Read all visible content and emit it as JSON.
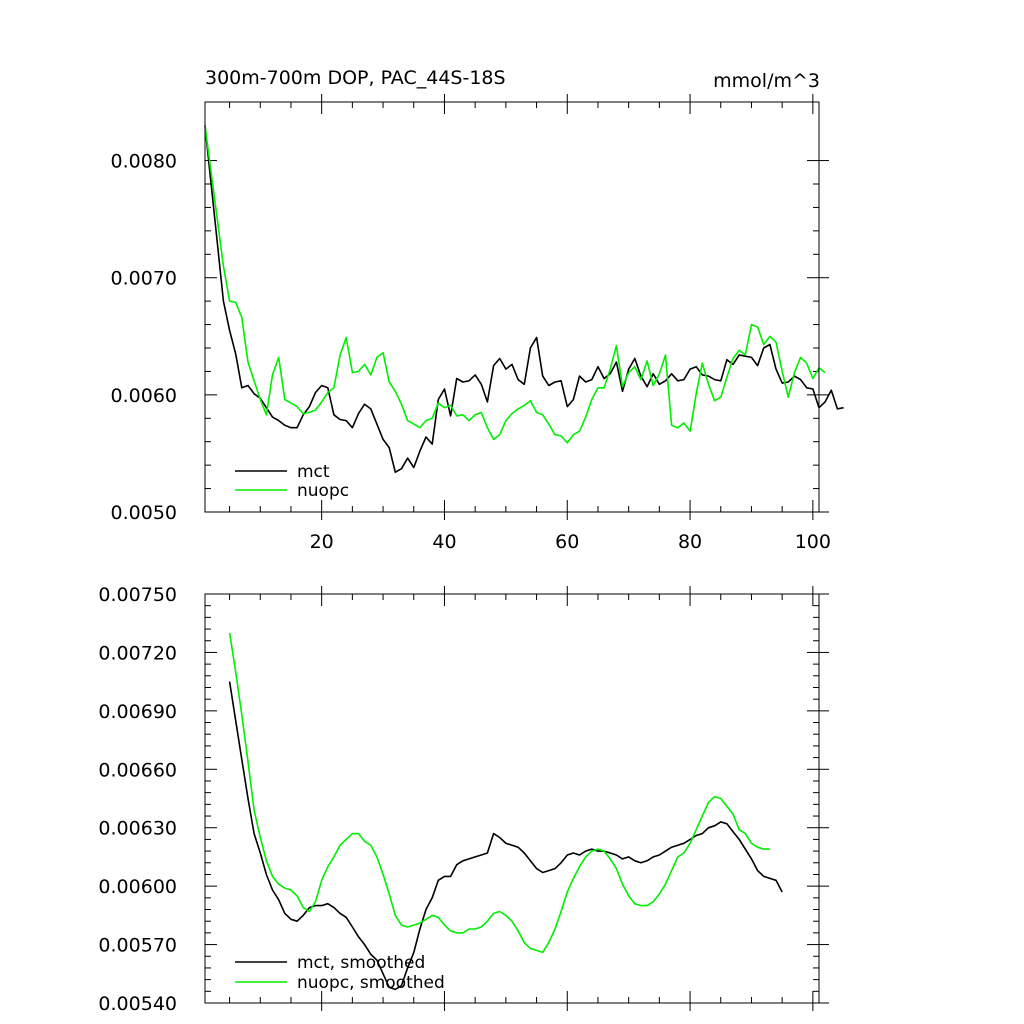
{
  "chart_data": [
    {
      "type": "line",
      "title": "300m-700m DOP, PAC_44S-18S",
      "units": "mmol/m^3",
      "xlim": [
        1,
        101
      ],
      "ylim": [
        0.005,
        0.0085
      ],
      "x_ticks": [
        20,
        40,
        60,
        80,
        100
      ],
      "x_tick_labels": [
        "20",
        "40",
        "60",
        "80",
        "100"
      ],
      "y_ticks": [
        0.005,
        0.006,
        0.007,
        0.008
      ],
      "y_tick_labels": [
        "0.0050",
        "0.0060",
        "0.0070",
        "0.0080"
      ],
      "grid": false,
      "legend_placement": "bottom-left",
      "series": [
        {
          "name": "mct",
          "color": "#000000",
          "x_start": 1,
          "values": [
            0.0083,
            0.0078,
            0.0073,
            0.0068,
            0.00655,
            0.00635,
            0.00606,
            0.00608,
            0.00601,
            0.00597,
            0.00589,
            0.00581,
            0.00578,
            0.00574,
            0.00572,
            0.00572,
            0.00583,
            0.0059,
            0.00602,
            0.00608,
            0.00606,
            0.00583,
            0.00579,
            0.00578,
            0.00572,
            0.00584,
            0.00592,
            0.00588,
            0.00575,
            0.00562,
            0.00555,
            0.00534,
            0.00537,
            0.00546,
            0.00538,
            0.00552,
            0.00564,
            0.00558,
            0.00596,
            0.00605,
            0.00582,
            0.00614,
            0.00611,
            0.00612,
            0.00617,
            0.00609,
            0.00594,
            0.00625,
            0.00631,
            0.00622,
            0.00626,
            0.00613,
            0.00609,
            0.0064,
            0.00649,
            0.00616,
            0.00608,
            0.00611,
            0.00612,
            0.0059,
            0.00596,
            0.00616,
            0.00611,
            0.00613,
            0.00624,
            0.00614,
            0.00618,
            0.00628,
            0.00603,
            0.00622,
            0.00631,
            0.00616,
            0.00607,
            0.00618,
            0.00609,
            0.00612,
            0.00618,
            0.00612,
            0.00613,
            0.00622,
            0.00624,
            0.00617,
            0.00616,
            0.00613,
            0.00612,
            0.0063,
            0.00626,
            0.00634,
            0.00633,
            0.00632,
            0.00625,
            0.0064,
            0.00643,
            0.00622,
            0.0061,
            0.00611,
            0.00616,
            0.00613,
            0.00606,
            0.00605,
            0.00589,
            0.00594,
            0.00604,
            0.00588,
            0.00589
          ]
        },
        {
          "name": "nuopc",
          "color": "#00ee00",
          "x_start": 1,
          "values": [
            0.0083,
            0.0079,
            0.0075,
            0.0071,
            0.0068,
            0.00679,
            0.00666,
            0.00628,
            0.00612,
            0.00596,
            0.00583,
            0.00617,
            0.00632,
            0.00596,
            0.00593,
            0.0059,
            0.00584,
            0.00585,
            0.00587,
            0.00594,
            0.00602,
            0.00606,
            0.00634,
            0.00649,
            0.00619,
            0.0062,
            0.00626,
            0.00617,
            0.00632,
            0.00636,
            0.00611,
            0.00603,
            0.00592,
            0.00578,
            0.00575,
            0.00572,
            0.00578,
            0.0058,
            0.00593,
            0.00589,
            0.00591,
            0.00582,
            0.00583,
            0.00578,
            0.00583,
            0.00585,
            0.00572,
            0.00562,
            0.00566,
            0.00578,
            0.00584,
            0.00588,
            0.00591,
            0.00595,
            0.00585,
            0.00583,
            0.00575,
            0.00566,
            0.00565,
            0.00559,
            0.00566,
            0.00569,
            0.00581,
            0.00596,
            0.00606,
            0.00606,
            0.00622,
            0.00642,
            0.00607,
            0.00619,
            0.00624,
            0.00613,
            0.00629,
            0.00608,
            0.00618,
            0.00634,
            0.00574,
            0.00572,
            0.00576,
            0.00569,
            0.00601,
            0.00627,
            0.00609,
            0.00595,
            0.00598,
            0.00615,
            0.00631,
            0.00638,
            0.00634,
            0.0066,
            0.00658,
            0.00643,
            0.0065,
            0.00645,
            0.0062,
            0.00598,
            0.00619,
            0.00632,
            0.00627,
            0.00614,
            0.00623,
            0.00619
          ]
        }
      ]
    },
    {
      "type": "line",
      "xlim": [
        1,
        101
      ],
      "ylim": [
        0.0054,
        0.0075
      ],
      "x_ticks": [
        20,
        40,
        60,
        80,
        100
      ],
      "x_tick_labels": [],
      "y_ticks": [
        0.0054,
        0.0057,
        0.006,
        0.0063,
        0.0066,
        0.0069,
        0.0072,
        0.0075
      ],
      "y_tick_labels": [
        "0.00540",
        "0.00570",
        "0.00600",
        "0.00630",
        "0.00660",
        "0.00690",
        "0.00720",
        "0.00750"
      ],
      "grid": false,
      "legend_placement": "bottom-left",
      "series": [
        {
          "name": "mct, smoothed",
          "color": "#000000",
          "x_start": 5,
          "values": [
            0.00705,
            0.00685,
            0.00665,
            0.00645,
            0.00627,
            0.00617,
            0.00606,
            0.00598,
            0.00593,
            0.00586,
            0.00583,
            0.00582,
            0.00585,
            0.00589,
            0.0059,
            0.0059,
            0.00591,
            0.00589,
            0.00586,
            0.00584,
            0.00579,
            0.00574,
            0.0057,
            0.00565,
            0.00562,
            0.00555,
            0.00548,
            0.00547,
            0.00549,
            0.00558,
            0.00566,
            0.00578,
            0.00588,
            0.00594,
            0.00603,
            0.00605,
            0.00605,
            0.00611,
            0.00613,
            0.00614,
            0.00615,
            0.00616,
            0.00617,
            0.00627,
            0.00625,
            0.00622,
            0.00621,
            0.0062,
            0.00617,
            0.00613,
            0.00609,
            0.00607,
            0.00608,
            0.00609,
            0.00612,
            0.00616,
            0.00617,
            0.00616,
            0.00618,
            0.00619,
            0.00618,
            0.00618,
            0.00617,
            0.00616,
            0.00614,
            0.00615,
            0.00613,
            0.00612,
            0.00613,
            0.00615,
            0.00616,
            0.00618,
            0.0062,
            0.00621,
            0.00622,
            0.00624,
            0.00626,
            0.00627,
            0.0063,
            0.00631,
            0.00633,
            0.00632,
            0.00628,
            0.00624,
            0.00619,
            0.00614,
            0.00608,
            0.00605,
            0.00604,
            0.00603,
            0.00597
          ]
        },
        {
          "name": "nuopc, smoothed",
          "color": "#00ee00",
          "x_start": 5,
          "values": [
            0.0073,
            0.0071,
            0.00688,
            0.00664,
            0.00639,
            0.00625,
            0.00613,
            0.00605,
            0.00601,
            0.00599,
            0.00598,
            0.00595,
            0.00589,
            0.00587,
            0.00592,
            0.00603,
            0.0061,
            0.00615,
            0.00621,
            0.00624,
            0.00627,
            0.00627,
            0.00623,
            0.00621,
            0.00615,
            0.00606,
            0.00596,
            0.00585,
            0.0058,
            0.00579,
            0.0058,
            0.00581,
            0.00583,
            0.00585,
            0.00584,
            0.0058,
            0.00577,
            0.00576,
            0.00576,
            0.00578,
            0.00578,
            0.00579,
            0.00582,
            0.00586,
            0.00587,
            0.00585,
            0.00582,
            0.00577,
            0.00571,
            0.00568,
            0.00567,
            0.00566,
            0.00571,
            0.00578,
            0.00587,
            0.00597,
            0.00604,
            0.0061,
            0.00615,
            0.00618,
            0.00619,
            0.00618,
            0.00614,
            0.00609,
            0.00601,
            0.00595,
            0.00591,
            0.0059,
            0.0059,
            0.00592,
            0.00596,
            0.00601,
            0.00608,
            0.00615,
            0.00617,
            0.00622,
            0.00629,
            0.00636,
            0.00643,
            0.00646,
            0.00645,
            0.00641,
            0.00637,
            0.00629,
            0.00627,
            0.00622,
            0.0062,
            0.00619,
            0.00619
          ]
        }
      ]
    }
  ]
}
